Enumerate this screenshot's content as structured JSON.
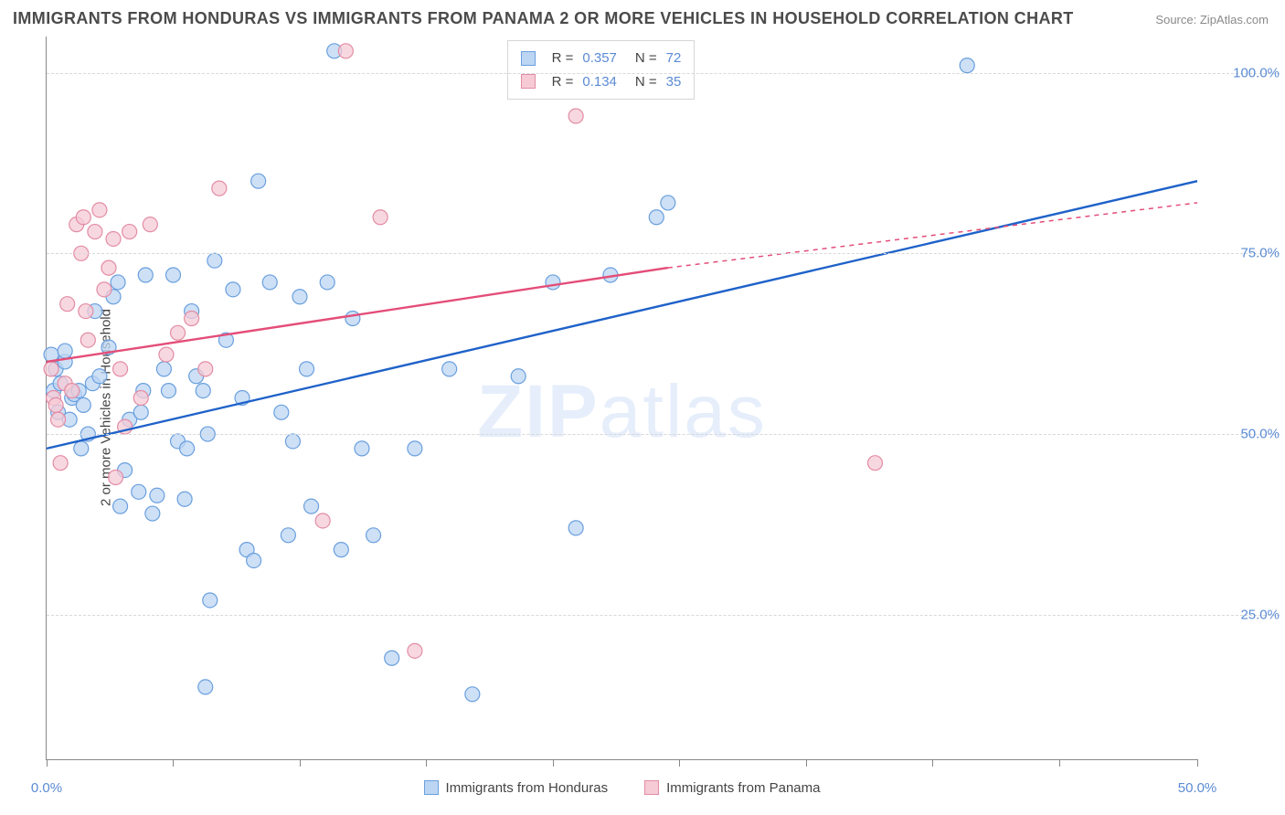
{
  "title": "IMMIGRANTS FROM HONDURAS VS IMMIGRANTS FROM PANAMA 2 OR MORE VEHICLES IN HOUSEHOLD CORRELATION CHART",
  "source_label": "Source:",
  "source_value": "ZipAtlas.com",
  "y_axis_title": "2 or more Vehicles in Household",
  "watermark_bold": "ZIP",
  "watermark_rest": "atlas",
  "chart": {
    "type": "scatter-with-regression",
    "background_color": "#ffffff",
    "grid_color": "#d8d8d8",
    "axis_color": "#888888",
    "xlim": [
      0,
      50
    ],
    "ylim": [
      5,
      105
    ],
    "xticks": [
      0,
      5.5,
      11,
      16.5,
      22,
      27.5,
      33,
      38.5,
      44,
      50
    ],
    "xtick_labels": {
      "0": "0.0%",
      "50": "50.0%"
    },
    "yticks": [
      25,
      50,
      75,
      100
    ],
    "ytick_labels": {
      "25": "25.0%",
      "50": "50.0%",
      "75": "75.0%",
      "100": "100.0%"
    },
    "marker_radius": 8,
    "marker_stroke_width": 1.2,
    "line_width": 2.4,
    "series": [
      {
        "id": "honduras",
        "label": "Immigrants from Honduras",
        "fill_color": "#bcd5f3",
        "stroke_color": "#6a9fde",
        "line_color": "#1f62c9",
        "R": "0.357",
        "N": "72",
        "regression": {
          "x1": 0,
          "y1": 48,
          "x2": 50,
          "y2": 85,
          "dash_from_x": 50
        },
        "points": [
          [
            0.2,
            61
          ],
          [
            0.3,
            56
          ],
          [
            0.4,
            59
          ],
          [
            0.5,
            53
          ],
          [
            0.6,
            57
          ],
          [
            0.8,
            60
          ],
          [
            0.8,
            61.5
          ],
          [
            1.0,
            52
          ],
          [
            1.1,
            55
          ],
          [
            1.2,
            55.5
          ],
          [
            1.4,
            56
          ],
          [
            1.5,
            48
          ],
          [
            1.6,
            54
          ],
          [
            1.8,
            50
          ],
          [
            2.0,
            57
          ],
          [
            2.1,
            67
          ],
          [
            2.3,
            58
          ],
          [
            2.7,
            62
          ],
          [
            2.9,
            69
          ],
          [
            3.1,
            71
          ],
          [
            3.2,
            40
          ],
          [
            3.4,
            45
          ],
          [
            3.6,
            52
          ],
          [
            4.0,
            42
          ],
          [
            4.1,
            53
          ],
          [
            4.2,
            56
          ],
          [
            4.3,
            72
          ],
          [
            4.6,
            39
          ],
          [
            4.8,
            41.5
          ],
          [
            5.1,
            59
          ],
          [
            5.3,
            56
          ],
          [
            5.5,
            72
          ],
          [
            5.7,
            49
          ],
          [
            6.0,
            41
          ],
          [
            6.1,
            48
          ],
          [
            6.3,
            67
          ],
          [
            6.5,
            58
          ],
          [
            6.8,
            56
          ],
          [
            7.0,
            50
          ],
          [
            7.1,
            27
          ],
          [
            7.3,
            74
          ],
          [
            7.8,
            63
          ],
          [
            8.1,
            70
          ],
          [
            8.5,
            55
          ],
          [
            8.7,
            34
          ],
          [
            9.0,
            32.5
          ],
          [
            9.2,
            85
          ],
          [
            9.7,
            71
          ],
          [
            10.2,
            53
          ],
          [
            10.5,
            36
          ],
          [
            10.7,
            49
          ],
          [
            11.0,
            69
          ],
          [
            11.3,
            59
          ],
          [
            11.5,
            40
          ],
          [
            12.2,
            71
          ],
          [
            12.5,
            103
          ],
          [
            12.8,
            34
          ],
          [
            13.3,
            66
          ],
          [
            13.7,
            48
          ],
          [
            14.2,
            36
          ],
          [
            15.0,
            19
          ],
          [
            16.0,
            48
          ],
          [
            17.5,
            59
          ],
          [
            18.5,
            14
          ],
          [
            20.5,
            58
          ],
          [
            22.0,
            71
          ],
          [
            23.0,
            37
          ],
          [
            24.5,
            72
          ],
          [
            26.5,
            80
          ],
          [
            27.0,
            82
          ],
          [
            40.0,
            101
          ],
          [
            6.9,
            15
          ]
        ]
      },
      {
        "id": "panama",
        "label": "Immigrants from Panama",
        "fill_color": "#f6cbd6",
        "stroke_color": "#e38ca4",
        "line_color": "#e44d78",
        "R": "0.134",
        "N": "35",
        "regression": {
          "x1": 0,
          "y1": 60,
          "x2": 27,
          "y2": 73,
          "dash_from_x": 27,
          "x3": 50,
          "y3": 82
        },
        "points": [
          [
            0.2,
            59
          ],
          [
            0.3,
            55
          ],
          [
            0.4,
            54
          ],
          [
            0.5,
            52
          ],
          [
            0.6,
            46
          ],
          [
            0.8,
            57
          ],
          [
            0.9,
            68
          ],
          [
            1.1,
            56
          ],
          [
            1.3,
            79
          ],
          [
            1.5,
            75
          ],
          [
            1.6,
            80
          ],
          [
            1.7,
            67
          ],
          [
            1.8,
            63
          ],
          [
            2.1,
            78
          ],
          [
            2.3,
            81
          ],
          [
            2.5,
            70
          ],
          [
            2.7,
            73
          ],
          [
            2.9,
            77
          ],
          [
            3.0,
            44
          ],
          [
            3.2,
            59
          ],
          [
            3.4,
            51
          ],
          [
            3.6,
            78
          ],
          [
            4.1,
            55
          ],
          [
            4.5,
            79
          ],
          [
            5.2,
            61
          ],
          [
            5.7,
            64
          ],
          [
            6.3,
            66
          ],
          [
            6.9,
            59
          ],
          [
            7.5,
            84
          ],
          [
            12.0,
            38
          ],
          [
            13.0,
            103
          ],
          [
            14.5,
            80
          ],
          [
            16.0,
            20
          ],
          [
            23.0,
            94
          ],
          [
            36.0,
            46
          ]
        ]
      }
    ]
  },
  "stat_box": {
    "rows": [
      {
        "swatch_series": "honduras",
        "r_label": "R =",
        "r_value": "0.357",
        "n_label": "N =",
        "n_value": "72"
      },
      {
        "swatch_series": "panama",
        "r_label": "R =",
        "r_value": "0.134",
        "n_label": "N =",
        "n_value": "35"
      }
    ]
  },
  "bottom_legend": [
    {
      "series": "honduras"
    },
    {
      "series": "panama"
    }
  ]
}
